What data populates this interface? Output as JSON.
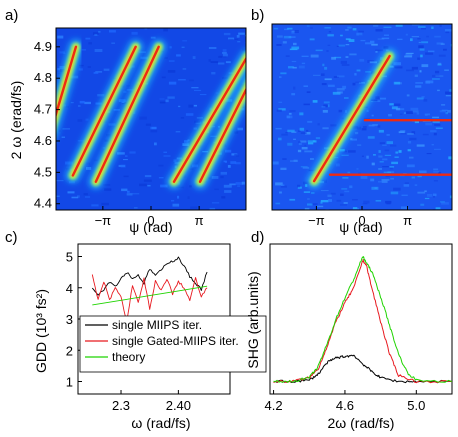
{
  "panels": {
    "a": {
      "label": "a)"
    },
    "b": {
      "label": "b)"
    },
    "c": {
      "label": "c)"
    },
    "d": {
      "label": "d)"
    }
  },
  "chart_data": [
    {
      "id": "a",
      "type": "heatmap",
      "title": "",
      "xlabel": "ψ (rad)",
      "ylabel": "2 ω (erad/fs)",
      "x_ticks": [
        "−π",
        "0",
        "π"
      ],
      "y_ticks": [
        "4.4",
        "4.5",
        "4.6",
        "4.7",
        "4.8",
        "4.9"
      ],
      "x_tick_values": [
        -3.1416,
        0,
        3.1416
      ],
      "y_tick_values": [
        4.4,
        4.5,
        4.6,
        4.7,
        4.8,
        4.9
      ],
      "xlim": [
        -6.2,
        6.2
      ],
      "ylim": [
        4.38,
        4.96
      ],
      "colormap": "jet",
      "traces": [
        {
          "x0": -6.6,
          "y0": 4.62,
          "x1": -4.9,
          "y1": 4.9
        },
        {
          "x0": -5.1,
          "y0": 4.49,
          "x1": -1.0,
          "y1": 4.9
        },
        {
          "x0": -3.6,
          "y0": 4.47,
          "x1": 0.5,
          "y1": 4.9
        },
        {
          "x0": 1.5,
          "y0": 4.47,
          "x1": 6.3,
          "y1": 4.87
        },
        {
          "x0": 3.2,
          "y0": 4.47,
          "x1": 7.3,
          "y1": 4.87
        }
      ]
    },
    {
      "id": "b",
      "type": "heatmap",
      "title": "",
      "xlabel": "ψ (rad)",
      "ylabel": "",
      "x_ticks": [
        "−π",
        "0",
        "π"
      ],
      "x_tick_values": [
        -3.1416,
        0,
        3.1416
      ],
      "xlim": [
        -6.2,
        6.2
      ],
      "ylim": [
        4.38,
        4.96
      ],
      "colormap": "jet",
      "traces": [
        {
          "x0": -3.3,
          "y0": 4.47,
          "x1": 1.9,
          "y1": 4.86
        },
        {
          "x0": 0.2,
          "y0": 4.66,
          "x1": 6.2,
          "y1": 4.66
        },
        {
          "x0": -2.2,
          "y0": 4.49,
          "x1": 6.2,
          "y1": 4.49
        }
      ]
    },
    {
      "id": "c",
      "type": "line",
      "title": "",
      "xlabel": "ω (rad/fs)",
      "ylabel": "GDD (10³ fs²)",
      "x_ticks": [
        "2.3",
        "2.40"
      ],
      "x_tick_values": [
        2.3,
        2.4
      ],
      "y_ticks": [
        "1",
        "2",
        "3",
        "4",
        "5"
      ],
      "y_tick_values": [
        1,
        2,
        3,
        4,
        5
      ],
      "xlim": [
        2.225,
        2.49
      ],
      "ylim": [
        0.6,
        5.4
      ],
      "legend_position": "lower-left",
      "series": [
        {
          "name": "single MIIPS iter.",
          "color": "#000000",
          "x": [
            2.25,
            2.26,
            2.27,
            2.28,
            2.29,
            2.3,
            2.31,
            2.32,
            2.33,
            2.34,
            2.35,
            2.36,
            2.37,
            2.38,
            2.39,
            2.4,
            2.41,
            2.42,
            2.43,
            2.44,
            2.45
          ],
          "values": [
            4.0,
            3.8,
            3.95,
            4.2,
            4.05,
            4.3,
            4.5,
            4.3,
            4.4,
            4.15,
            4.6,
            4.4,
            4.55,
            4.8,
            4.85,
            4.95,
            4.7,
            4.35,
            4.15,
            3.95,
            4.5
          ]
        },
        {
          "name": "single Gated-MIIPS iter.",
          "color": "#e8191f",
          "x": [
            2.25,
            2.26,
            2.27,
            2.28,
            2.29,
            2.3,
            2.31,
            2.32,
            2.33,
            2.34,
            2.35,
            2.36,
            2.37,
            2.38,
            2.39,
            2.4,
            2.41,
            2.42,
            2.43,
            2.44,
            2.45
          ],
          "values": [
            4.4,
            3.6,
            4.2,
            3.6,
            4.0,
            3.7,
            2.9,
            4.1,
            3.5,
            4.3,
            3.3,
            4.2,
            3.9,
            4.3,
            3.8,
            4.2,
            4.0,
            3.6,
            4.3,
            3.7,
            4.0
          ]
        },
        {
          "name": "theory",
          "color": "#1fd400",
          "x": [
            2.25,
            2.45
          ],
          "values": [
            3.45,
            4.05
          ]
        }
      ]
    },
    {
      "id": "d",
      "type": "line",
      "title": "",
      "xlabel": "2ω (rad/fs)",
      "ylabel": "SHG (arb.units)",
      "x_ticks": [
        "4.2",
        "4.6",
        "5.0"
      ],
      "x_tick_values": [
        4.2,
        4.6,
        5.0
      ],
      "xlim": [
        4.18,
        5.2
      ],
      "ylim": [
        -0.1,
        1.1
      ],
      "series": [
        {
          "name": "",
          "color": "#000000",
          "x": [
            4.2,
            4.3,
            4.4,
            4.45,
            4.5,
            4.55,
            4.6,
            4.65,
            4.7,
            4.75,
            4.8,
            4.9,
            5.0,
            5.2
          ],
          "values": [
            0.0,
            0.0,
            0.01,
            0.06,
            0.15,
            0.19,
            0.2,
            0.21,
            0.14,
            0.08,
            0.03,
            0.0,
            0.0,
            0.0
          ]
        },
        {
          "name": "",
          "color": "#e8191f",
          "x": [
            4.2,
            4.3,
            4.4,
            4.45,
            4.5,
            4.55,
            4.6,
            4.65,
            4.7,
            4.72,
            4.75,
            4.8,
            4.85,
            4.9,
            5.0,
            5.2
          ],
          "values": [
            0.0,
            0.0,
            0.03,
            0.1,
            0.28,
            0.48,
            0.63,
            0.75,
            0.97,
            0.93,
            0.75,
            0.48,
            0.22,
            0.05,
            0.0,
            0.0
          ]
        },
        {
          "name": "",
          "color": "#1fd400",
          "x": [
            4.2,
            4.3,
            4.4,
            4.45,
            4.5,
            4.55,
            4.6,
            4.65,
            4.7,
            4.72,
            4.75,
            4.8,
            4.85,
            4.9,
            4.95,
            5.0,
            5.2
          ],
          "values": [
            0.0,
            0.0,
            0.03,
            0.12,
            0.3,
            0.5,
            0.67,
            0.82,
            1.0,
            0.95,
            0.88,
            0.68,
            0.45,
            0.22,
            0.07,
            0.01,
            0.0
          ]
        }
      ]
    }
  ]
}
